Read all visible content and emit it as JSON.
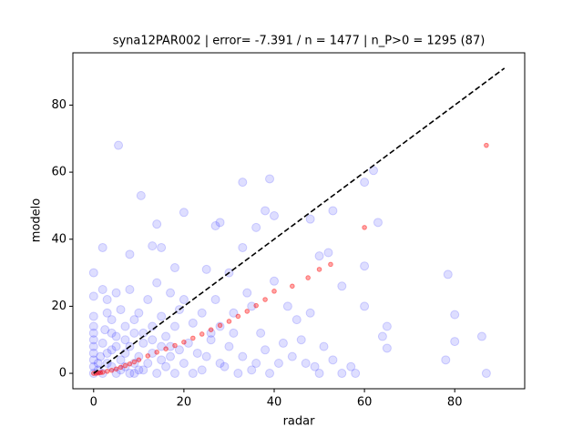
{
  "chart_data": {
    "type": "scatter",
    "title": "syna12PAR002 | error= -7.391 / n = 1477 | n_P>0 = 1295 (87)",
    "x_label": "radar",
    "y_label": "modelo",
    "xlim": [
      -4.6,
      95.5
    ],
    "ylim": [
      -4.6,
      95.6
    ],
    "xticks": [
      0,
      20,
      40,
      60,
      80
    ],
    "yticks": [
      0,
      20,
      40,
      60,
      80
    ],
    "series": [
      {
        "kind": "scatter",
        "color": "#0000ff",
        "alpha": 0.13,
        "x": [
          5.5,
          87,
          86,
          80,
          78.5,
          78,
          80,
          65,
          64,
          65,
          63,
          62,
          60,
          60,
          60,
          57,
          55,
          53,
          52,
          50,
          48,
          39,
          33,
          20,
          14,
          10.5,
          2,
          0,
          8,
          13,
          15,
          27,
          28,
          36,
          38,
          40,
          33,
          40,
          45,
          42,
          44,
          46,
          50,
          55,
          58,
          53,
          48,
          30,
          25,
          18,
          20,
          22,
          35,
          37,
          30,
          28,
          32,
          25,
          24,
          26,
          0,
          0,
          0,
          0,
          0,
          0,
          0,
          0,
          0,
          0,
          1,
          1.5,
          2,
          2.5,
          3,
          3,
          4,
          4,
          5,
          5,
          6,
          6,
          7,
          7,
          8,
          8,
          9,
          9,
          10,
          10,
          11,
          11,
          12,
          12,
          13,
          13,
          14,
          14,
          15,
          15,
          16,
          16,
          17,
          17,
          18,
          18,
          19,
          19,
          20,
          21,
          1,
          2,
          3,
          4,
          5,
          6,
          7,
          8,
          9,
          10,
          22,
          23,
          24,
          26,
          27,
          28,
          29,
          31,
          34,
          36,
          38,
          39,
          41,
          43,
          33,
          31,
          35,
          47,
          49,
          51,
          3,
          5,
          7,
          9,
          11,
          13,
          15,
          17,
          2,
          4
        ],
        "values": [
          68,
          0,
          11,
          17.5,
          29.5,
          4,
          9.5,
          14,
          11,
          7.5,
          45,
          60.5,
          57,
          32,
          20,
          2,
          26,
          48.5,
          36,
          35,
          46,
          58,
          57,
          48,
          44.5,
          53,
          37.5,
          30,
          35.5,
          38,
          37.5,
          44,
          45,
          43.5,
          48.5,
          47,
          37.5,
          27.5,
          16,
          9,
          5,
          10,
          0,
          0,
          0,
          4,
          18,
          30,
          31,
          31.5,
          22,
          15,
          20,
          12,
          8,
          3,
          0,
          5,
          18,
          10,
          0,
          2,
          4,
          6,
          8,
          10,
          12,
          14,
          17,
          23,
          1,
          5,
          9,
          13,
          3,
          22,
          7,
          16,
          0,
          11,
          4,
          19,
          2,
          14,
          8,
          25,
          0,
          12,
          5,
          18,
          1,
          9,
          3,
          22,
          6,
          14,
          0,
          27,
          8,
          17,
          2,
          11,
          5,
          24,
          0,
          14,
          7,
          19,
          3,
          9,
          3,
          0,
          6,
          2,
          8,
          1,
          10,
          0,
          3,
          1,
          0,
          6,
          1,
          12,
          22,
          14,
          2,
          18,
          24,
          3,
          7,
          0,
          3,
          20,
          5,
          12,
          1,
          3,
          2,
          8,
          18,
          24,
          6,
          16,
          12,
          10,
          4,
          8,
          25,
          12
        ]
      },
      {
        "kind": "scatter",
        "color": "#ff0000",
        "alpha": 0.35,
        "x": [
          0,
          0.5,
          1,
          1.5,
          2,
          3,
          4,
          5,
          6,
          7,
          8,
          9,
          10,
          12,
          14,
          16,
          18,
          20,
          22,
          24,
          26,
          28,
          30,
          32,
          34,
          36,
          38,
          40,
          44,
          47.5,
          50,
          52.5,
          60,
          87
        ],
        "values": [
          0,
          0,
          0.1,
          0.2,
          0.3,
          0.6,
          0.9,
          1.3,
          1.8,
          2.3,
          2.8,
          3.4,
          4,
          5.2,
          6.3,
          7.3,
          8.3,
          9.3,
          10.5,
          11.7,
          13,
          14.3,
          15.5,
          17,
          18.5,
          20.2,
          22,
          24.5,
          26,
          28.5,
          31,
          32.5,
          43.5,
          68
        ]
      },
      {
        "kind": "line",
        "color": "#000000",
        "linestyle": "dashed",
        "x": [
          0,
          91
        ],
        "values": [
          0,
          91
        ]
      }
    ]
  }
}
